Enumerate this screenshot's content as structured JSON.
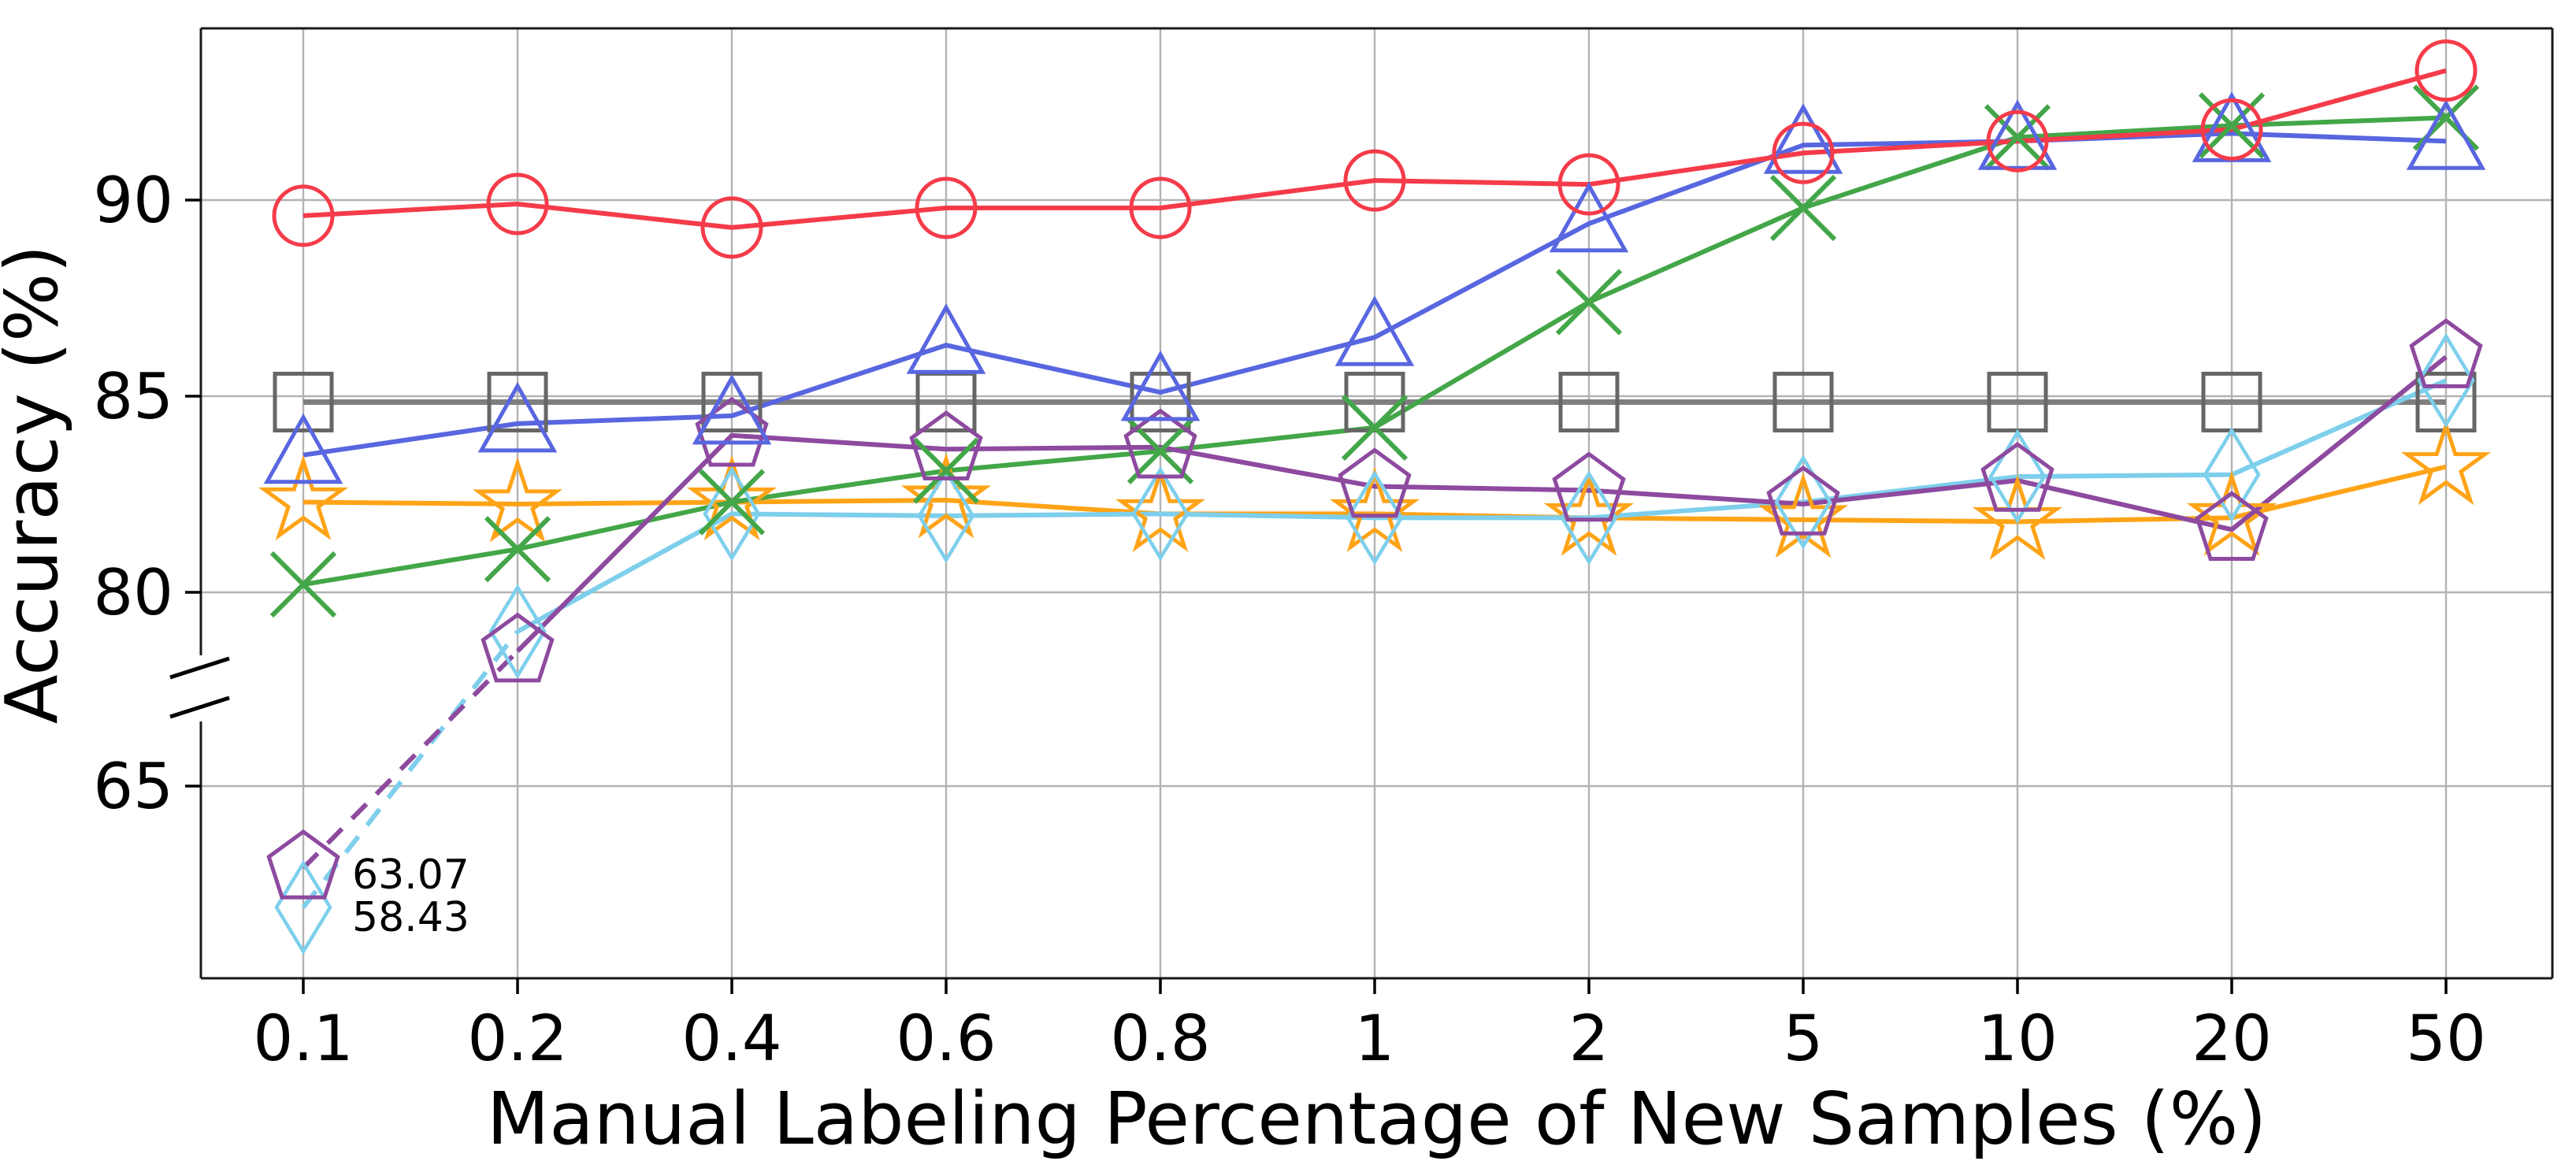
{
  "chart_data": {
    "type": "line",
    "title": "",
    "xlabel": "Manual Labeling Percentage of New Samples (%)",
    "ylabel": "Accuracy (%)",
    "x_categories": [
      "0.1",
      "0.2",
      "0.4",
      "0.6",
      "0.8",
      "1",
      "2",
      "5",
      "10",
      "20",
      "50"
    ],
    "y_ticks_upper": [
      90,
      85,
      80
    ],
    "y_ticks_lower": [
      65
    ],
    "ylim_upper_segment": [
      78.4,
      94.4
    ],
    "ylim_lower_segment": [
      55.3,
      67.7
    ],
    "axis_break": true,
    "grid": true,
    "legend_position": "none",
    "series": [
      {
        "name": "gray-square-baseline",
        "color": "#7f7f7f",
        "marker_color": "#666666",
        "marker": "square",
        "line_width": 7,
        "values": [
          84.85,
          84.85,
          84.85,
          84.85,
          84.85,
          84.85,
          84.85,
          84.85,
          84.85,
          84.85,
          84.85
        ],
        "dash_first_segment": false
      },
      {
        "name": "orange-star",
        "color": "#ffa317",
        "marker_color": "#ffa317",
        "marker": "star",
        "line_width": 6,
        "values": [
          82.3,
          82.25,
          82.3,
          82.35,
          82.0,
          82.0,
          81.9,
          81.85,
          81.8,
          81.9,
          83.2
        ],
        "dash_first_segment": false
      },
      {
        "name": "cyan-diamond",
        "color": "#7dcfec",
        "marker_color": "#7dcfec",
        "marker": "diamond",
        "line_width": 6,
        "values": [
          58.43,
          79.0,
          82.0,
          81.95,
          82.0,
          81.9,
          81.9,
          82.3,
          82.95,
          83.0,
          85.4
        ],
        "dash_first_segment": true
      },
      {
        "name": "green-x",
        "color": "#43a648",
        "marker_color": "#43a648",
        "marker": "x",
        "line_width": 6,
        "values": [
          80.2,
          81.1,
          82.3,
          83.1,
          83.6,
          84.2,
          87.4,
          89.8,
          91.6,
          91.9,
          92.1
        ],
        "dash_first_segment": false
      },
      {
        "name": "purple-pentagon",
        "color": "#8d4a9f",
        "marker_color": "#8d4a9f",
        "marker": "pentagon",
        "line_width": 6,
        "values": [
          63.07,
          78.5,
          84.0,
          83.65,
          83.7,
          82.7,
          82.6,
          82.25,
          82.85,
          81.6,
          86.0
        ],
        "dash_first_segment": true
      },
      {
        "name": "blue-triangle",
        "color": "#5866e0",
        "marker_color": "#5866e0",
        "marker": "triangle",
        "line_width": 6,
        "values": [
          83.5,
          84.3,
          84.5,
          86.3,
          85.1,
          86.5,
          89.4,
          91.4,
          91.5,
          91.7,
          91.5
        ],
        "dash_first_segment": false
      },
      {
        "name": "red-circle",
        "color": "#f53b49",
        "marker_color": "#f53b49",
        "marker": "circle",
        "line_width": 6,
        "values": [
          89.6,
          89.9,
          89.3,
          89.8,
          89.8,
          90.5,
          90.4,
          91.2,
          91.5,
          91.8,
          93.3
        ],
        "dash_first_segment": false
      }
    ],
    "annotations": [
      {
        "text": "63.07",
        "color": "#8d4a9f",
        "series": "purple-pentagon"
      },
      {
        "text": "58.43",
        "color": "#7dcfec",
        "series": "cyan-diamond"
      }
    ]
  }
}
